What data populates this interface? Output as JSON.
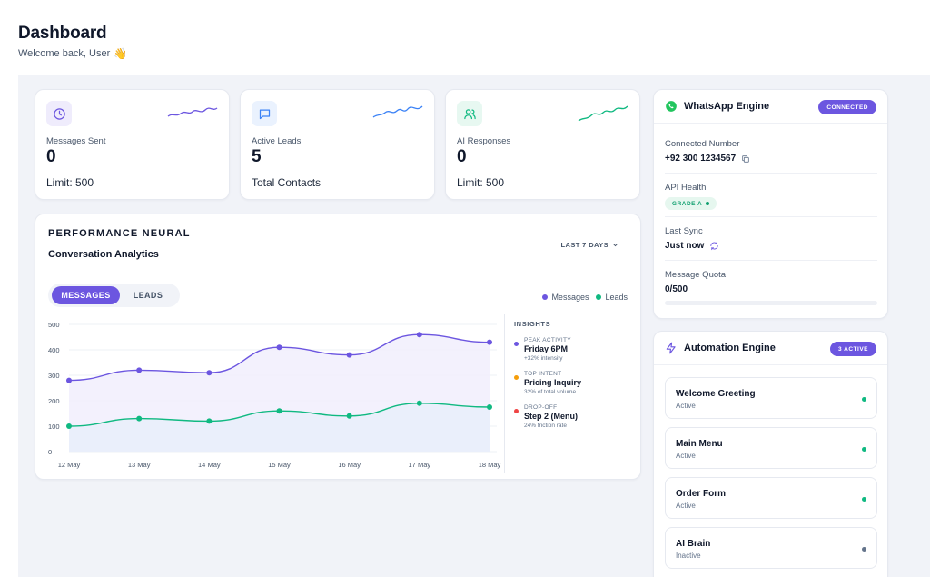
{
  "header": {
    "title": "Dashboard",
    "subtitle": "Welcome back, User",
    "wave": "👋"
  },
  "stats": [
    {
      "label": "Messages Sent",
      "value": "0",
      "foot": "Limit: 500",
      "icon": "clock-icon",
      "color": "#6c56e0",
      "bg": "#efecfc"
    },
    {
      "label": "Active Leads",
      "value": "5",
      "foot": "Total Contacts",
      "icon": "chat-icon",
      "color": "#3b82f6",
      "bg": "#eaf2fe"
    },
    {
      "label": "AI Responses",
      "value": "0",
      "foot": "Limit: 500",
      "icon": "users-icon",
      "color": "#10b981",
      "bg": "#e7f8f1"
    }
  ],
  "performance": {
    "eyebrow": "PERFORMANCE NEURAL",
    "title": "Conversation Analytics",
    "range": "LAST 7 DAYS",
    "tabs": {
      "messages": "MESSAGES",
      "leads": "LEADS"
    },
    "legend": {
      "messages": "Messages",
      "leads": "Leads"
    },
    "insights_title": "INSIGHTS",
    "insights": [
      {
        "label": "PEAK ACTIVITY",
        "value": "Friday 6PM",
        "note": "+32% intensity",
        "color": "#6c56e0"
      },
      {
        "label": "TOP INTENT",
        "value": "Pricing Inquiry",
        "note": "32% of total volume",
        "color": "#f59e0b"
      },
      {
        "label": "DROP-OFF",
        "value": "Step 2 (Menu)",
        "note": "24% friction rate",
        "color": "#ef4444"
      }
    ]
  },
  "chart_data": {
    "type": "line",
    "categories": [
      "12 May",
      "13 May",
      "14 May",
      "15 May",
      "16 May",
      "17 May",
      "18 May"
    ],
    "series": [
      {
        "name": "Messages",
        "values": [
          280,
          320,
          310,
          410,
          380,
          460,
          430
        ],
        "color": "#6c56e0"
      },
      {
        "name": "Leads",
        "values": [
          100,
          130,
          120,
          160,
          140,
          190,
          175
        ],
        "color": "#10b981"
      }
    ],
    "yticks": [
      0,
      100,
      200,
      300,
      400,
      500
    ],
    "ylim": [
      0,
      500
    ],
    "grid": true
  },
  "whatsapp": {
    "title": "WhatsApp Engine",
    "status": "CONNECTED",
    "number_label": "Connected Number",
    "number": "+92 300 1234567",
    "health_label": "API Health",
    "health_value": "GRADE A",
    "sync_label": "Last Sync",
    "sync_value": "Just now",
    "quota_label": "Message Quota",
    "quota_value": "0/500",
    "quota_fraction": 0
  },
  "automation": {
    "title": "Automation Engine",
    "badge": "3 ACTIVE",
    "flows": [
      {
        "name": "Welcome Greeting",
        "status": "Active",
        "color": "#10b981"
      },
      {
        "name": "Main Menu",
        "status": "Active",
        "color": "#10b981"
      },
      {
        "name": "Order Form",
        "status": "Active",
        "color": "#10b981"
      },
      {
        "name": "AI Brain",
        "status": "Inactive",
        "color": "#64748b"
      }
    ]
  }
}
